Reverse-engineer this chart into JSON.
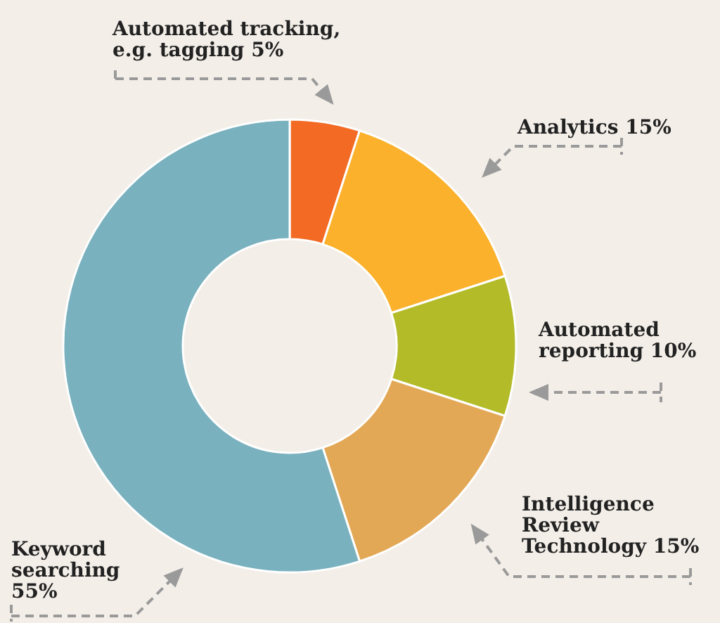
{
  "chart_data": {
    "type": "donut",
    "categories": [
      "Automated tracking, e.g. tagging",
      "Analytics",
      "Automated reporting",
      "Intelligence Review Technology",
      "Keyword searching"
    ],
    "values": [
      5,
      15,
      10,
      15,
      55
    ],
    "value_labels": [
      "5%",
      "15%",
      "10%",
      "15%",
      "55%"
    ],
    "colors": [
      "#f26a24",
      "#fbb12b",
      "#b3bb28",
      "#e3a856",
      "#79b1be"
    ]
  }
}
